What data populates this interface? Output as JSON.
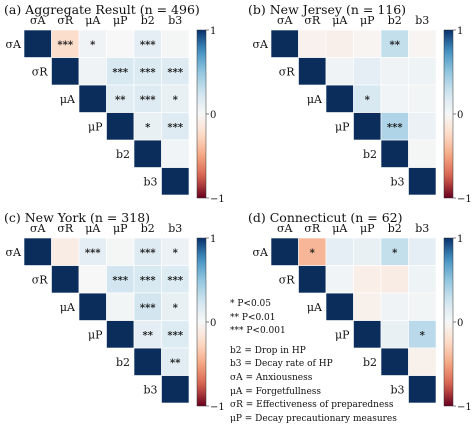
{
  "chart_data": [
    {
      "type": "heatmap",
      "title": "(a) Aggregate Result (n = 496)",
      "labels": [
        "σA",
        "σR",
        "μA",
        "μP",
        "b2",
        "b3"
      ],
      "colorbar": {
        "min": -1,
        "max": 1,
        "ticks": [
          "1",
          "0",
          "−1"
        ]
      },
      "cells": [
        {
          "row": 0,
          "col": 1,
          "value": -0.22,
          "sig": "***"
        },
        {
          "row": 0,
          "col": 2,
          "value": 0.05,
          "sig": "*"
        },
        {
          "row": 0,
          "col": 3,
          "value": 0.0,
          "sig": ""
        },
        {
          "row": 0,
          "col": 4,
          "value": 0.12,
          "sig": "***"
        },
        {
          "row": 0,
          "col": 5,
          "value": 0.02,
          "sig": ""
        },
        {
          "row": 1,
          "col": 2,
          "value": 0.05,
          "sig": ""
        },
        {
          "row": 1,
          "col": 3,
          "value": 0.2,
          "sig": "***"
        },
        {
          "row": 1,
          "col": 4,
          "value": 0.18,
          "sig": "***"
        },
        {
          "row": 1,
          "col": 5,
          "value": 0.16,
          "sig": "***"
        },
        {
          "row": 2,
          "col": 3,
          "value": 0.14,
          "sig": "**"
        },
        {
          "row": 2,
          "col": 4,
          "value": 0.16,
          "sig": "***"
        },
        {
          "row": 2,
          "col": 5,
          "value": 0.1,
          "sig": "*"
        },
        {
          "row": 3,
          "col": 4,
          "value": 0.1,
          "sig": "*"
        },
        {
          "row": 3,
          "col": 5,
          "value": 0.16,
          "sig": "***"
        },
        {
          "row": 4,
          "col": 5,
          "value": 0.04,
          "sig": ""
        }
      ]
    },
    {
      "type": "heatmap",
      "title": "(b) New Jersey (n = 116)",
      "labels": [
        "σA",
        "σR",
        "μA",
        "μP",
        "b2",
        "b3"
      ],
      "colorbar": {
        "min": -1,
        "max": 1,
        "ticks": [
          "1",
          "0",
          "−1"
        ]
      },
      "cells": [
        {
          "row": 0,
          "col": 1,
          "value": -0.05,
          "sig": ""
        },
        {
          "row": 0,
          "col": 2,
          "value": -0.07,
          "sig": ""
        },
        {
          "row": 0,
          "col": 3,
          "value": -0.03,
          "sig": ""
        },
        {
          "row": 0,
          "col": 4,
          "value": 0.3,
          "sig": "**"
        },
        {
          "row": 0,
          "col": 5,
          "value": -0.03,
          "sig": ""
        },
        {
          "row": 1,
          "col": 2,
          "value": 0.05,
          "sig": ""
        },
        {
          "row": 1,
          "col": 3,
          "value": 0.12,
          "sig": ""
        },
        {
          "row": 1,
          "col": 4,
          "value": 0.05,
          "sig": ""
        },
        {
          "row": 1,
          "col": 5,
          "value": 0.06,
          "sig": ""
        },
        {
          "row": 2,
          "col": 3,
          "value": 0.2,
          "sig": "*"
        },
        {
          "row": 2,
          "col": 4,
          "value": 0.04,
          "sig": ""
        },
        {
          "row": 2,
          "col": 5,
          "value": 0.03,
          "sig": ""
        },
        {
          "row": 3,
          "col": 4,
          "value": 0.38,
          "sig": "***"
        },
        {
          "row": 3,
          "col": 5,
          "value": 0.08,
          "sig": ""
        },
        {
          "row": 4,
          "col": 5,
          "value": 0.02,
          "sig": ""
        }
      ]
    },
    {
      "type": "heatmap",
      "title": "(c) New York (n = 318)",
      "labels": [
        "σA",
        "σR",
        "μA",
        "μP",
        "b2",
        "b3"
      ],
      "colorbar": {
        "min": -1,
        "max": 1,
        "ticks": [
          "1",
          "0",
          "−1"
        ]
      },
      "cells": [
        {
          "row": 0,
          "col": 1,
          "value": -0.1,
          "sig": ""
        },
        {
          "row": 0,
          "col": 2,
          "value": 0.12,
          "sig": "***"
        },
        {
          "row": 0,
          "col": 3,
          "value": 0.02,
          "sig": ""
        },
        {
          "row": 0,
          "col": 4,
          "value": 0.16,
          "sig": "***"
        },
        {
          "row": 0,
          "col": 5,
          "value": 0.08,
          "sig": "*"
        },
        {
          "row": 1,
          "col": 2,
          "value": 0.0,
          "sig": ""
        },
        {
          "row": 1,
          "col": 3,
          "value": 0.24,
          "sig": "***"
        },
        {
          "row": 1,
          "col": 4,
          "value": 0.2,
          "sig": "***"
        },
        {
          "row": 1,
          "col": 5,
          "value": 0.17,
          "sig": "***"
        },
        {
          "row": 2,
          "col": 3,
          "value": 0.03,
          "sig": ""
        },
        {
          "row": 2,
          "col": 4,
          "value": 0.24,
          "sig": "***"
        },
        {
          "row": 2,
          "col": 5,
          "value": 0.1,
          "sig": "*"
        },
        {
          "row": 3,
          "col": 4,
          "value": 0.12,
          "sig": "**"
        },
        {
          "row": 3,
          "col": 5,
          "value": 0.17,
          "sig": "***"
        },
        {
          "row": 4,
          "col": 5,
          "value": 0.14,
          "sig": "**"
        }
      ]
    },
    {
      "type": "heatmap",
      "title": "(d) Connecticut (n = 62)",
      "labels": [
        "σA",
        "σR",
        "μA",
        "μP",
        "b2",
        "b3"
      ],
      "colorbar": {
        "min": -1,
        "max": 1,
        "ticks": [
          "1",
          "0",
          "−1"
        ]
      },
      "cells": [
        {
          "row": 0,
          "col": 1,
          "value": -0.42,
          "sig": "*"
        },
        {
          "row": 0,
          "col": 2,
          "value": 0.12,
          "sig": ""
        },
        {
          "row": 0,
          "col": 3,
          "value": 0.1,
          "sig": ""
        },
        {
          "row": 0,
          "col": 4,
          "value": 0.3,
          "sig": "*"
        },
        {
          "row": 0,
          "col": 5,
          "value": 0.12,
          "sig": ""
        },
        {
          "row": 1,
          "col": 2,
          "value": 0.04,
          "sig": ""
        },
        {
          "row": 1,
          "col": 3,
          "value": -0.08,
          "sig": ""
        },
        {
          "row": 1,
          "col": 4,
          "value": -0.1,
          "sig": ""
        },
        {
          "row": 1,
          "col": 5,
          "value": 0.06,
          "sig": ""
        },
        {
          "row": 2,
          "col": 3,
          "value": -0.06,
          "sig": ""
        },
        {
          "row": 2,
          "col": 4,
          "value": 0.05,
          "sig": ""
        },
        {
          "row": 2,
          "col": 5,
          "value": 0.03,
          "sig": ""
        },
        {
          "row": 3,
          "col": 4,
          "value": 0.1,
          "sig": ""
        },
        {
          "row": 3,
          "col": 5,
          "value": 0.34,
          "sig": "*"
        },
        {
          "row": 4,
          "col": 5,
          "value": -0.06,
          "sig": ""
        }
      ]
    }
  ],
  "legend": {
    "significance": [
      "*  P<0.05",
      "** P<0.01",
      "*** P<0.001"
    ],
    "definitions": [
      "b2 = Drop in HP",
      "b3 = Decay rate of HP",
      "σA = Anxiousness",
      "μA = Forgetfullness",
      "σR = Effectiveness of preparedness",
      "μP = Decay precautionary measures"
    ]
  },
  "colors": {
    "positive": "#08306b",
    "negative": "#67001f",
    "diagonal": "#0b2d5c"
  }
}
